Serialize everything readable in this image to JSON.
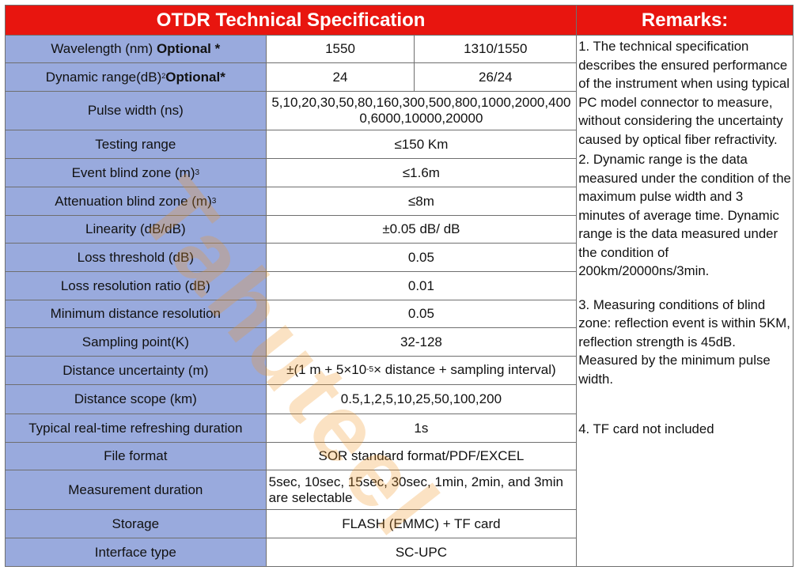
{
  "header": {
    "title": "OTDR Technical Specification",
    "remarks_title": "Remarks:"
  },
  "rows": [
    {
      "label": "Wavelength (nm)",
      "label_bold": "Optional *",
      "v1": "1550",
      "v2": "1310/1550"
    },
    {
      "label": "Dynamic range(dB)",
      "label_sup": "2",
      "label_bold": "Optional*",
      "v1": "24",
      "v2": "26/24"
    },
    {
      "label": "Pulse width (ns)",
      "value": "5,10,20,30,50,80,160,300,500,800,1000,2000,4000,6000,10000,20000"
    },
    {
      "label": "Testing range",
      "value": "≤150 Km"
    },
    {
      "label": "Event blind zone (m)",
      "label_sup": "3",
      "value": "≤1.6m"
    },
    {
      "label": "Attenuation blind zone (m)",
      "label_sup": "3",
      "value": "≤8m"
    },
    {
      "label": "Linearity (dB/dB)",
      "value": "±0.05 dB/ dB"
    },
    {
      "label": "Loss threshold (dB)",
      "value": "0.05"
    },
    {
      "label": "Loss resolution ratio (dB)",
      "value": "0.01"
    },
    {
      "label": "Minimum distance resolution",
      "value": "0.05"
    },
    {
      "label": "Sampling point(K)",
      "value": "32-128"
    },
    {
      "label": "Distance uncertainty (m)",
      "value_pre": "±(1 m + 5×10",
      "value_sup": "-5",
      "value_post": "× distance + sampling interval)"
    },
    {
      "label": "Distance scope (km)",
      "value": "0.5,1,2,5,10,25,50,100,200"
    },
    {
      "label": "Typical real-time refreshing duration",
      "value": "1s"
    },
    {
      "label": "File format",
      "value": "SOR standard format/PDF/EXCEL"
    },
    {
      "label": "Measurement duration",
      "value": "5sec, 10sec, 15sec, 30sec, 1min, 2min, and 3min are selectable"
    },
    {
      "label": "Storage",
      "value": "FLASH (EMMC) + TF card"
    },
    {
      "label": "Interface type",
      "value": "SC-UPC"
    }
  ],
  "remarks": [
    "1. The technical specification describes the ensured performance of the instrument when using typical PC model connector to measure, without considering the uncertainty caused by optical fiber refractivity.",
    "2. Dynamic range is the data measured under the condition of the maximum pulse width and 3 minutes of average time. Dynamic range is the data measured under the condition of 200km/20000ns/3min.",
    "3. Measuring conditions of blind zone: reflection event is within 5KM, reflection strength is 45dB. Measured by the minimum pulse width.",
    "4. TF card not included"
  ],
  "watermark": "Tahuteel",
  "colors": {
    "header_red": "#e8150f",
    "label_blue": "#99aadd",
    "watermark_orange": "#f09628"
  }
}
